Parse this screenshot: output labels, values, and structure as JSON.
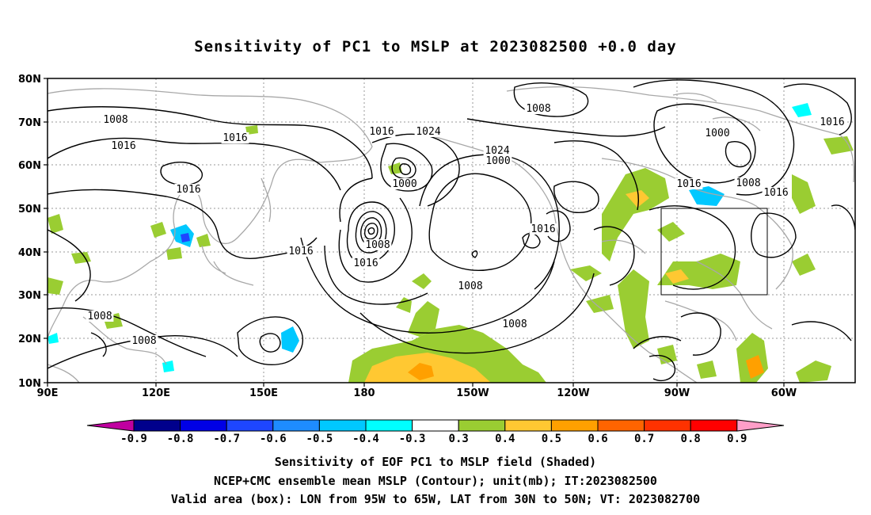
{
  "title": "Sensitivity of PC1 to MSLP at 2023082500 +0.0 day",
  "map": {
    "lat_labels": [
      "80N",
      "70N",
      "60N",
      "50N",
      "40N",
      "30N",
      "20N",
      "10N"
    ],
    "lon_labels": [
      "90E",
      "120E",
      "150E",
      "180",
      "150W",
      "120W",
      "90W",
      "60W"
    ],
    "valid_box": {
      "lon_min": -95,
      "lon_max": -65,
      "lat_min": 30,
      "lat_max": 50
    },
    "contour_labels": [
      "1008",
      "1016",
      "1016",
      "1016",
      "1016",
      "1008",
      "1008",
      "1016",
      "1024",
      "1000",
      "1000",
      "1008",
      "1016",
      "1024",
      "1008",
      "1016",
      "1016",
      "1000",
      "1016",
      "1008",
      "1016",
      "1008",
      "1008"
    ]
  },
  "colorbar": {
    "labels": [
      "-0.9",
      "-0.8",
      "-0.7",
      "-0.6",
      "-0.5",
      "-0.4",
      "-0.3",
      "0.3",
      "0.4",
      "0.5",
      "0.6",
      "0.7",
      "0.8",
      "0.9"
    ],
    "colors": [
      "#c000a0",
      "#00008c",
      "#0000e6",
      "#1e46ff",
      "#1e8cff",
      "#00c8ff",
      "#00ffff",
      "#ffffff",
      "#9acd32",
      "#ffc832",
      "#ffa000",
      "#ff6400",
      "#ff3200",
      "#ff0000",
      "#ff9ec8"
    ]
  },
  "captions": [
    "Sensitivity of EOF PC1 to MSLP field (Shaded)",
    "NCEP+CMC ensemble mean MSLP (Contour); unit(mb); IT:2023082500",
    "Valid area (box): LON from 95W to 65W, LAT from 30N to 50N; VT: 2023082700"
  ]
}
